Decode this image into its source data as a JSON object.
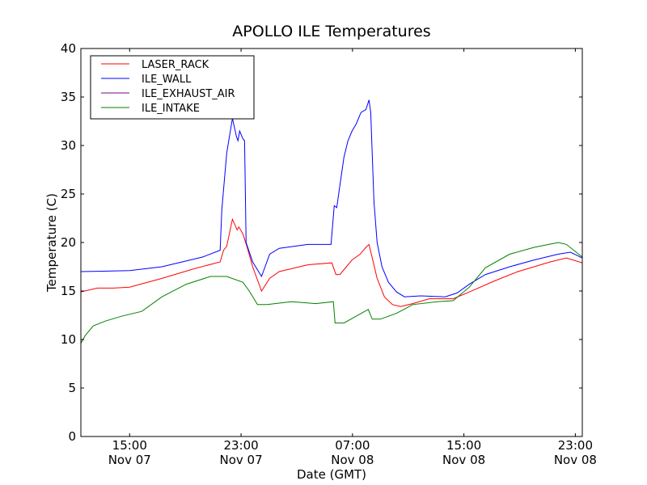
{
  "chart_data": {
    "type": "line",
    "title": "APOLLO ILE Temperatures",
    "xlabel": "Date (GMT)",
    "ylabel": "Temperature (C)",
    "x_units": "hours since Nov 07 00:00 GMT",
    "xlim": [
      11.5,
      47.5
    ],
    "ylim": [
      0,
      40
    ],
    "yticks": [
      0,
      5,
      10,
      15,
      20,
      25,
      30,
      35,
      40
    ],
    "xticks": [
      {
        "value": 15,
        "time": "15:00",
        "date": "Nov 07"
      },
      {
        "value": 23,
        "time": "23:00",
        "date": "Nov 07"
      },
      {
        "value": 31,
        "time": "07:00",
        "date": "Nov 08"
      },
      {
        "value": 39,
        "time": "15:00",
        "date": "Nov 08"
      },
      {
        "value": 47,
        "time": "23:00",
        "date": "Nov 08"
      }
    ],
    "grid": false,
    "legend_position": "top-left",
    "series": [
      {
        "name": "LASER_RACK",
        "color": "#ff0000",
        "x": [
          11.5,
          12.68,
          13.84,
          15,
          17.32,
          19.65,
          21.5,
          21.74,
          21.97,
          22.38,
          22.72,
          22.84,
          23.13,
          23.42,
          23.83,
          24.47,
          25.05,
          25.74,
          27.78,
          29.52,
          29.81,
          30.1,
          30.56,
          30.97,
          31.55,
          31.96,
          32.19,
          32.42,
          32.77,
          33.29,
          33.87,
          34.45,
          35.33,
          36.49,
          38.23,
          39.39,
          41.13,
          42.87,
          45.2,
          46.36,
          47.5
        ],
        "y": [
          14.9,
          15.3,
          15.3,
          15.4,
          16.3,
          17.3,
          18.0,
          19.2,
          19.6,
          22.4,
          21.3,
          21.6,
          20.9,
          19.6,
          17.5,
          15.0,
          16.3,
          17.0,
          17.7,
          17.9,
          16.7,
          16.7,
          17.5,
          18.2,
          18.8,
          19.5,
          19.8,
          18.4,
          16.3,
          14.4,
          13.6,
          13.4,
          13.7,
          14.2,
          14.2,
          14.9,
          16.0,
          17.0,
          18.0,
          18.4,
          17.9
        ]
      },
      {
        "name": "ILE_WALL",
        "color": "#0000ff",
        "x": [
          11.5,
          15,
          17.32,
          20.23,
          21.5,
          21.62,
          21.97,
          22.38,
          22.67,
          22.78,
          22.9,
          23.13,
          23.25,
          23.36,
          23.83,
          24.47,
          25.05,
          25.74,
          27.78,
          29.46,
          29.69,
          29.87,
          30.1,
          30.39,
          30.68,
          30.97,
          31.26,
          31.61,
          31.96,
          32.19,
          32.31,
          32.54,
          32.77,
          33.12,
          33.58,
          34.16,
          34.74,
          35.91,
          37.65,
          38.52,
          39.39,
          40.55,
          42.29,
          44.04,
          45.78,
          46.65,
          47.5
        ],
        "y": [
          17.0,
          17.1,
          17.5,
          18.5,
          19.2,
          23.4,
          29.2,
          32.8,
          30.9,
          30.5,
          31.5,
          30.7,
          30.5,
          20.0,
          18.0,
          16.5,
          18.8,
          19.4,
          19.8,
          19.8,
          23.8,
          23.6,
          25.9,
          28.8,
          30.5,
          31.5,
          32.2,
          33.4,
          33.7,
          34.7,
          33.4,
          24.2,
          20.0,
          17.5,
          15.9,
          14.9,
          14.4,
          14.5,
          14.4,
          14.8,
          15.7,
          16.7,
          17.5,
          18.2,
          18.8,
          19.0,
          18.4
        ]
      },
      {
        "name": "ILE_EXHAUST_AIR",
        "color": "#800080",
        "x": [],
        "y": []
      },
      {
        "name": "ILE_INTAKE",
        "color": "#008000",
        "x": [
          11.5,
          11.81,
          12.39,
          13.26,
          14.42,
          15.87,
          17.32,
          19.07,
          20.81,
          21.97,
          23.13,
          23.59,
          24.18,
          24.87,
          26.61,
          28.36,
          29.63,
          29.75,
          30.39,
          31.26,
          32.13,
          32.42,
          33.0,
          34.16,
          35.33,
          37.07,
          38.23,
          39.39,
          40.55,
          42.29,
          44.04,
          45.78,
          46.36,
          47.5
        ],
        "y": [
          9.6,
          10.4,
          11.4,
          11.9,
          12.4,
          12.9,
          14.4,
          15.7,
          16.5,
          16.5,
          15.9,
          15.0,
          13.6,
          13.6,
          13.9,
          13.7,
          13.9,
          11.7,
          11.7,
          12.4,
          13.1,
          12.1,
          12.1,
          12.7,
          13.6,
          13.9,
          14.0,
          15.4,
          17.4,
          18.8,
          19.5,
          20.0,
          19.8,
          18.5
        ]
      }
    ]
  }
}
